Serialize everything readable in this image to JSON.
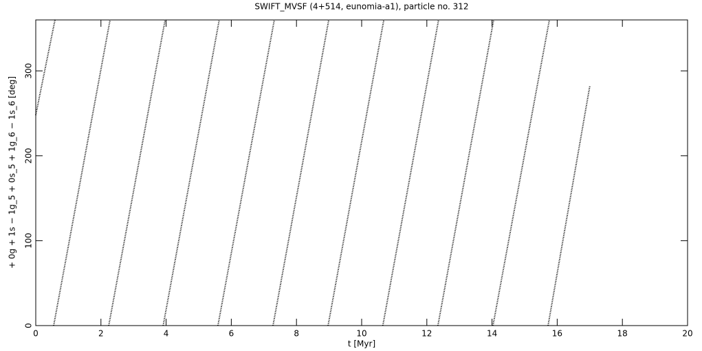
{
  "chart_data": {
    "type": "line",
    "title": "SWIFT_MVSF (4+514, eunomia-a1), particle no. 312",
    "x_label": "t [Myr]",
    "y_label": "+ 0g + 1s − 1g_5 + 0s_5 + 1g_6 − 1s_6 [deg]",
    "x": [
      0,
      0.59,
      null,
      0.55,
      2.28,
      null,
      2.24,
      3.97,
      null,
      3.91,
      5.63,
      null,
      5.59,
      7.32,
      null,
      7.28,
      8.99,
      null,
      8.97,
      10.68,
      null,
      10.65,
      12.36,
      null,
      12.34,
      14.05,
      null,
      14.03,
      15.76,
      null,
      15.72,
      17.0
    ],
    "series": [
      {
        "color": "#000000",
        "values": [
          248,
          360,
          null,
          0,
          360,
          null,
          0,
          360,
          null,
          0,
          360,
          null,
          0,
          360,
          null,
          0,
          360,
          null,
          0,
          360,
          null,
          0,
          360,
          null,
          0,
          360,
          null,
          0,
          360,
          null,
          0,
          282
        ]
      }
    ],
    "xlim": [
      0,
      20
    ],
    "xticks": [
      0,
      2,
      4,
      6,
      8,
      10,
      12,
      14,
      16,
      18,
      20
    ],
    "ylim": [
      0,
      360
    ],
    "yticks": [
      0,
      100,
      200,
      300
    ]
  }
}
